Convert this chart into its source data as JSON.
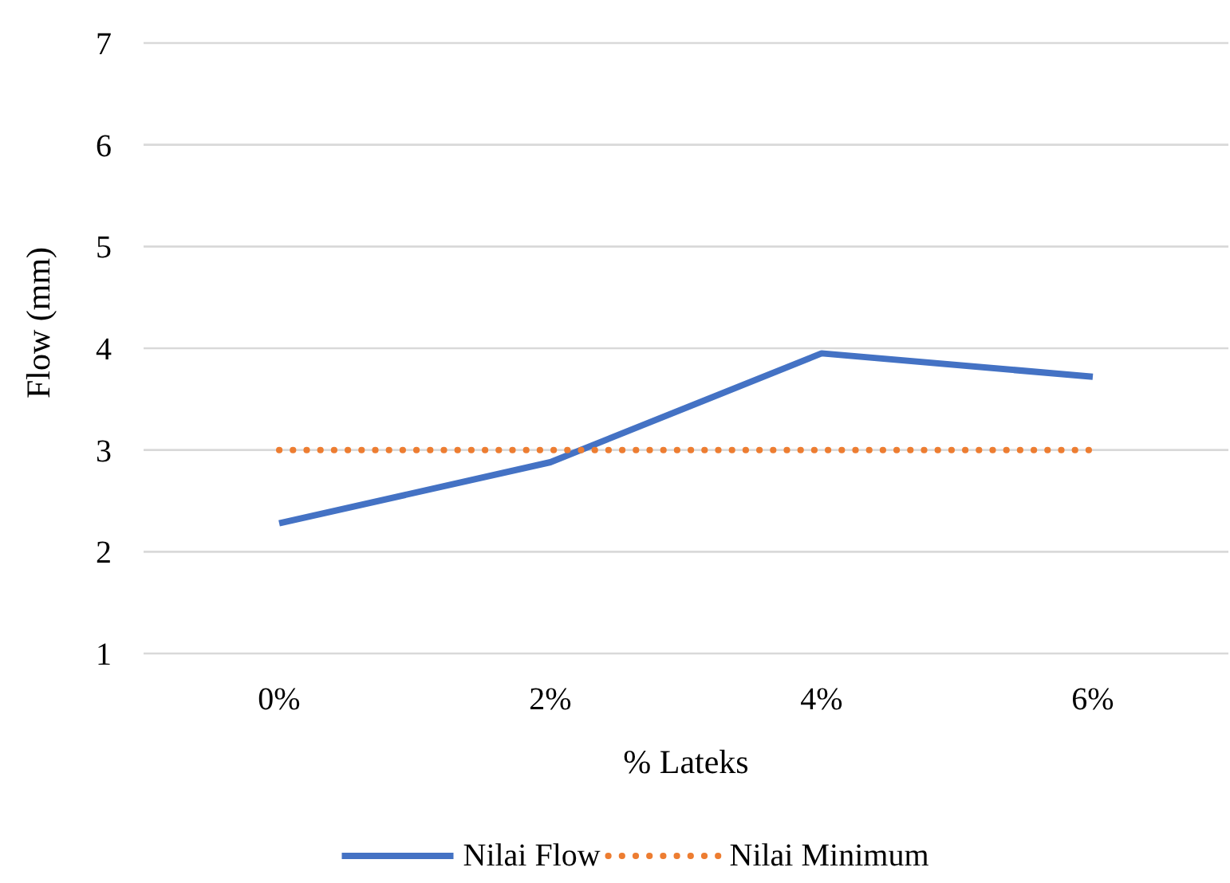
{
  "chart_data": {
    "type": "line",
    "xlabel": "% Lateks",
    "ylabel": "Flow (mm)",
    "categories": [
      "0%",
      "2%",
      "4%",
      "6%"
    ],
    "series": [
      {
        "name": "Nilai Flow",
        "color": "#4472c4",
        "values": [
          2.28,
          2.88,
          3.95,
          3.72
        ],
        "line_style": "solid"
      },
      {
        "name": "Nilai Minimum",
        "color": "#ed7d31",
        "values": [
          3,
          3,
          3,
          3
        ],
        "line_style": "dotted"
      }
    ],
    "ylim": [
      1,
      7
    ],
    "yticks": [
      1,
      2,
      3,
      4,
      5,
      6,
      7
    ],
    "grid": "y",
    "legend": "bottom",
    "marker": "none"
  }
}
